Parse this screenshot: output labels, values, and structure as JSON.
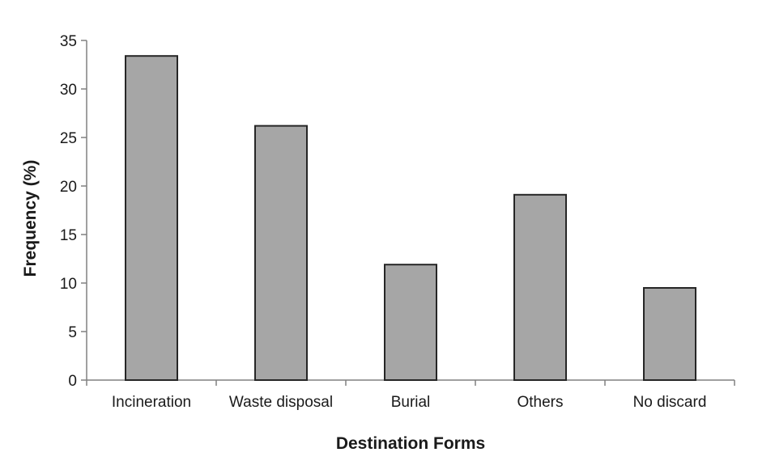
{
  "chart_data": {
    "type": "bar",
    "title": "",
    "xlabel": "Destination  Forms",
    "ylabel": "Frequency (%)",
    "categories": [
      "Incineration",
      "Waste disposal",
      "Burial",
      "Others",
      "No discard"
    ],
    "values": [
      33.4,
      26.2,
      11.9,
      19.1,
      9.5
    ],
    "ylim": [
      0,
      35
    ],
    "yticks": [
      0,
      5,
      10,
      15,
      20,
      25,
      30,
      35
    ],
    "grid": false,
    "legend": "none",
    "colors": {
      "bar_fill": "#a6a6a6",
      "bar_stroke": "#262626",
      "axis": "#808080",
      "text": "#1a1a1a"
    }
  }
}
